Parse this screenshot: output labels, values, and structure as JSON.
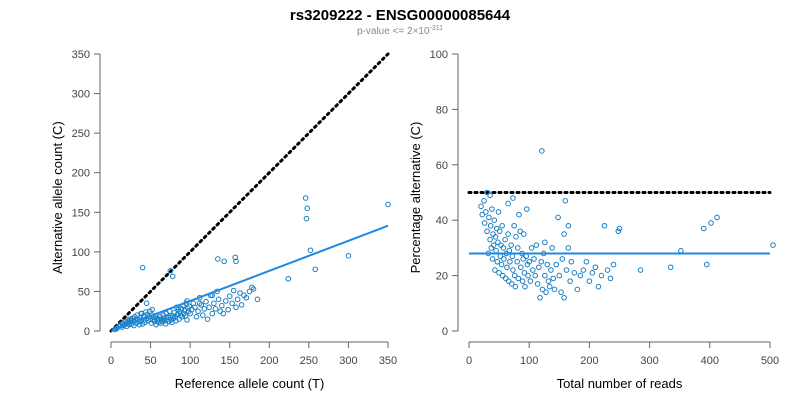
{
  "chart_data": {
    "title": "rs3209222 - ENSG00000085644",
    "subtitle": {
      "prefix": "p-value <= 2×10",
      "exponent": "-311"
    },
    "colors": {
      "points": "#1a7fc4",
      "fit_line": "#1e88e5",
      "reference_line": "#000000",
      "axis": "#666666"
    },
    "panels": [
      {
        "type": "scatter",
        "xlabel": "Reference allele count (T)",
        "ylabel": "Alternative allele count (C)",
        "xlim": [
          0,
          350
        ],
        "ylim": [
          0,
          350
        ],
        "xticks": [
          "0",
          "50",
          "100",
          "150",
          "200",
          "250",
          "300",
          "350"
        ],
        "yticks": [
          "0",
          "50",
          "100",
          "150",
          "200",
          "250",
          "300",
          "350"
        ],
        "reference_line": {
          "style": "dotted",
          "x": [
            0,
            350
          ],
          "y": [
            0,
            350
          ]
        },
        "fit_line": {
          "x": [
            0,
            350
          ],
          "y": [
            0,
            133
          ]
        },
        "points": [
          [
            5,
            2
          ],
          [
            7,
            3
          ],
          [
            8,
            4
          ],
          [
            10,
            6
          ],
          [
            12,
            8
          ],
          [
            14,
            5
          ],
          [
            15,
            10
          ],
          [
            16,
            7
          ],
          [
            18,
            12
          ],
          [
            19,
            9
          ],
          [
            20,
            6
          ],
          [
            21,
            14
          ],
          [
            22,
            11
          ],
          [
            23,
            8
          ],
          [
            24,
            15
          ],
          [
            25,
            13
          ],
          [
            26,
            9
          ],
          [
            27,
            16
          ],
          [
            28,
            12
          ],
          [
            29,
            7
          ],
          [
            30,
            18
          ],
          [
            31,
            14
          ],
          [
            32,
            10
          ],
          [
            33,
            20
          ],
          [
            34,
            15
          ],
          [
            35,
            12
          ],
          [
            36,
            8
          ],
          [
            37,
            17
          ],
          [
            38,
            13
          ],
          [
            39,
            22
          ],
          [
            40,
            9
          ],
          [
            41,
            19
          ],
          [
            42,
            14
          ],
          [
            43,
            11
          ],
          [
            44,
            24
          ],
          [
            45,
            16
          ],
          [
            46,
            21
          ],
          [
            47,
            13
          ],
          [
            48,
            18
          ],
          [
            49,
            25
          ],
          [
            50,
            15
          ],
          [
            51,
            10
          ],
          [
            52,
            20
          ],
          [
            53,
            14
          ],
          [
            54,
            17
          ],
          [
            55,
            12
          ],
          [
            56,
            19
          ],
          [
            57,
            8
          ],
          [
            58,
            16
          ],
          [
            59,
            13
          ],
          [
            60,
            11
          ],
          [
            61,
            15
          ],
          [
            62,
            18
          ],
          [
            63,
            10
          ],
          [
            64,
            14
          ],
          [
            65,
            12
          ],
          [
            66,
            20
          ],
          [
            67,
            16
          ],
          [
            68,
            13
          ],
          [
            69,
            9
          ],
          [
            70,
            22
          ],
          [
            71,
            15
          ],
          [
            72,
            18
          ],
          [
            73,
            12
          ],
          [
            74,
            25
          ],
          [
            75,
            17
          ],
          [
            76,
            14
          ],
          [
            77,
            11
          ],
          [
            78,
            19
          ],
          [
            79,
            16
          ],
          [
            80,
            23
          ],
          [
            81,
            18
          ],
          [
            82,
            13
          ],
          [
            83,
            30
          ],
          [
            84,
            21
          ],
          [
            85,
            27
          ],
          [
            86,
            15
          ],
          [
            87,
            24
          ],
          [
            88,
            20
          ],
          [
            89,
            28
          ],
          [
            90,
            18
          ],
          [
            91,
            32
          ],
          [
            92,
            22
          ],
          [
            93,
            26
          ],
          [
            94,
            19
          ],
          [
            95,
            35
          ],
          [
            96,
            14
          ],
          [
            97,
            29
          ],
          [
            98,
            25
          ],
          [
            99,
            31
          ],
          [
            100,
            22
          ],
          [
            102,
            27
          ],
          [
            104,
            35
          ],
          [
            106,
            30
          ],
          [
            108,
            18
          ],
          [
            110,
            25
          ],
          [
            112,
            42
          ],
          [
            114,
            33
          ],
          [
            116,
            20
          ],
          [
            118,
            28
          ],
          [
            120,
            37
          ],
          [
            122,
            15
          ],
          [
            124,
            30
          ],
          [
            126,
            45
          ],
          [
            128,
            22
          ],
          [
            130,
            35
          ],
          [
            132,
            28
          ],
          [
            134,
            50
          ],
          [
            136,
            40
          ],
          [
            138,
            25
          ],
          [
            140,
            32
          ],
          [
            142,
            22
          ],
          [
            145,
            38
          ],
          [
            148,
            27
          ],
          [
            150,
            44
          ],
          [
            153,
            35
          ],
          [
            155,
            51
          ],
          [
            158,
            30
          ],
          [
            160,
            40
          ],
          [
            163,
            48
          ],
          [
            165,
            33
          ],
          [
            168,
            45
          ],
          [
            171,
            42
          ],
          [
            175,
            50
          ],
          [
            178,
            55
          ],
          [
            180,
            53
          ],
          [
            185,
            40
          ],
          [
            40,
            80
          ],
          [
            75,
            76
          ],
          [
            78,
            69
          ],
          [
            135,
            91
          ],
          [
            143,
            88
          ],
          [
            157,
            93
          ],
          [
            158,
            88
          ],
          [
            246,
            168
          ],
          [
            248,
            155
          ],
          [
            247,
            142
          ],
          [
            252,
            102
          ],
          [
            258,
            78
          ],
          [
            300,
            95
          ],
          [
            350,
            160
          ],
          [
            224,
            66
          ],
          [
            112,
            35
          ],
          [
            128,
            45
          ],
          [
            96,
            38
          ],
          [
            52,
            27
          ],
          [
            45,
            35
          ],
          [
            38,
            22
          ]
        ]
      },
      {
        "type": "scatter",
        "xlabel": "Total number of reads",
        "ylabel": "Percentage alternative (C)",
        "xlim": [
          0,
          500
        ],
        "ylim": [
          0,
          100
        ],
        "xticks": [
          "0",
          "100",
          "200",
          "300",
          "400",
          "500"
        ],
        "yticks": [
          "0",
          "20",
          "40",
          "60",
          "80",
          "100"
        ],
        "reference_line": {
          "style": "dotted",
          "x": [
            0,
            500
          ],
          "y": [
            50,
            50
          ]
        },
        "fit_line": {
          "x": [
            0,
            500
          ],
          "y": [
            28,
            28
          ]
        },
        "points": [
          [
            20,
            45
          ],
          [
            22,
            42
          ],
          [
            25,
            47
          ],
          [
            26,
            39
          ],
          [
            28,
            43
          ],
          [
            30,
            36
          ],
          [
            30,
            50
          ],
          [
            32,
            28
          ],
          [
            33,
            41
          ],
          [
            35,
            33
          ],
          [
            35,
            49
          ],
          [
            36,
            38
          ],
          [
            37,
            30
          ],
          [
            38,
            44
          ],
          [
            39,
            26
          ],
          [
            40,
            35
          ],
          [
            41,
            31
          ],
          [
            42,
            40
          ],
          [
            43,
            22
          ],
          [
            44,
            34
          ],
          [
            45,
            29
          ],
          [
            46,
            37
          ],
          [
            47,
            25
          ],
          [
            48,
            32
          ],
          [
            49,
            43
          ],
          [
            50,
            21
          ],
          [
            51,
            36
          ],
          [
            52,
            27
          ],
          [
            53,
            31
          ],
          [
            54,
            24
          ],
          [
            55,
            38
          ],
          [
            56,
            20
          ],
          [
            57,
            30
          ],
          [
            58,
            26
          ],
          [
            60,
            33
          ],
          [
            61,
            19
          ],
          [
            62,
            28
          ],
          [
            63,
            23
          ],
          [
            65,
            35
          ],
          [
            66,
            18
          ],
          [
            67,
            29
          ],
          [
            68,
            25
          ],
          [
            70,
            31
          ],
          [
            71,
            17
          ],
          [
            72,
            27
          ],
          [
            73,
            22
          ],
          [
            75,
            38
          ],
          [
            76,
            20
          ],
          [
            77,
            16
          ],
          [
            78,
            34
          ],
          [
            80,
            25
          ],
          [
            81,
            30
          ],
          [
            82,
            19
          ],
          [
            83,
            42
          ],
          [
            85,
            36
          ],
          [
            86,
            23
          ],
          [
            88,
            28
          ],
          [
            89,
            18
          ],
          [
            90,
            26
          ],
          [
            91,
            35
          ],
          [
            92,
            21
          ],
          [
            93,
            16
          ],
          [
            95,
            27
          ],
          [
            96,
            44
          ],
          [
            97,
            24
          ],
          [
            98,
            20
          ],
          [
            100,
            25
          ],
          [
            102,
            18
          ],
          [
            104,
            30
          ],
          [
            106,
            22
          ],
          [
            108,
            26
          ],
          [
            110,
            20
          ],
          [
            112,
            31
          ],
          [
            114,
            17
          ],
          [
            116,
            23
          ],
          [
            118,
            12
          ],
          [
            120,
            25
          ],
          [
            121,
            65
          ],
          [
            122,
            15
          ],
          [
            124,
            28
          ],
          [
            126,
            20
          ],
          [
            128,
            14
          ],
          [
            130,
            24
          ],
          [
            132,
            18
          ],
          [
            134,
            16
          ],
          [
            136,
            22
          ],
          [
            138,
            30
          ],
          [
            140,
            19
          ],
          [
            142,
            15
          ],
          [
            145,
            24
          ],
          [
            148,
            41
          ],
          [
            150,
            20
          ],
          [
            153,
            14
          ],
          [
            155,
            26
          ],
          [
            158,
            12
          ],
          [
            160,
            47
          ],
          [
            162,
            22
          ],
          [
            165,
            30
          ],
          [
            168,
            18
          ],
          [
            170,
            25
          ],
          [
            175,
            21
          ],
          [
            180,
            15
          ],
          [
            185,
            20
          ],
          [
            190,
            22
          ],
          [
            195,
            25
          ],
          [
            200,
            18
          ],
          [
            205,
            21
          ],
          [
            210,
            23
          ],
          [
            215,
            16
          ],
          [
            220,
            20
          ],
          [
            225,
            38
          ],
          [
            230,
            22
          ],
          [
            235,
            19
          ],
          [
            240,
            24
          ],
          [
            248,
            36
          ],
          [
            250,
            37
          ],
          [
            285,
            22
          ],
          [
            335,
            23
          ],
          [
            352,
            29
          ],
          [
            390,
            37
          ],
          [
            395,
            24
          ],
          [
            402,
            39
          ],
          [
            412,
            41
          ],
          [
            505,
            31
          ],
          [
            165,
            38
          ],
          [
            158,
            35
          ],
          [
            126,
            32
          ],
          [
            65,
            46
          ],
          [
            73,
            48
          ]
        ]
      }
    ]
  }
}
